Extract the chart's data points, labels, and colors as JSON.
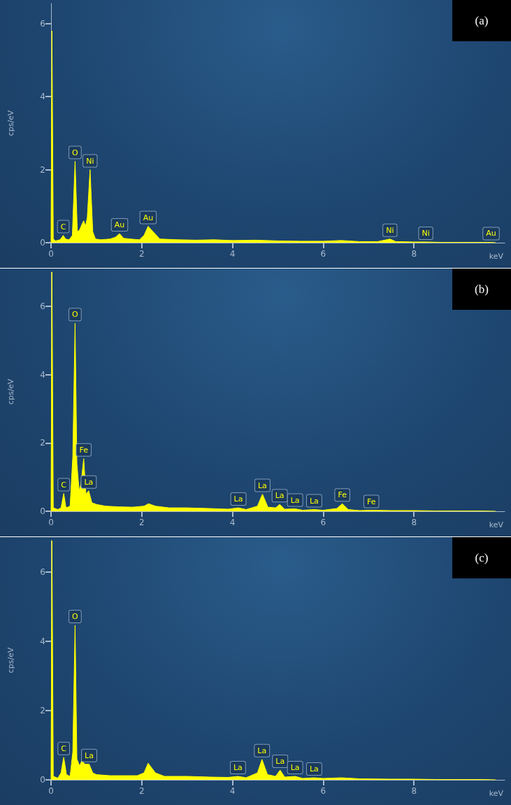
{
  "chart_data": [
    {
      "type": "area",
      "title": "(a)",
      "xlabel": "keV",
      "ylabel": "cps/eV",
      "color": "#ffff00",
      "xlim": [
        0,
        10
      ],
      "ylim": [
        0,
        6.55
      ],
      "xticks": [
        0,
        2,
        4,
        6,
        8
      ],
      "yticks": [
        0,
        2,
        4,
        6
      ],
      "x": [
        0,
        0.02,
        0.05,
        0.1,
        0.2,
        0.27,
        0.32,
        0.4,
        0.47,
        0.53,
        0.58,
        0.63,
        0.68,
        0.72,
        0.76,
        0.8,
        0.86,
        0.92,
        0.98,
        1.1,
        1.3,
        1.42,
        1.51,
        1.6,
        1.75,
        1.95,
        2.05,
        2.14,
        2.25,
        2.4,
        2.8,
        3.2,
        3.6,
        4.0,
        4.5,
        5.0,
        5.5,
        6.0,
        6.4,
        6.8,
        7.2,
        7.47,
        7.6,
        8.0,
        8.26,
        8.6,
        9.0,
        9.4,
        9.7,
        9.8
      ],
      "values": [
        0,
        5.8,
        0.1,
        0.05,
        0.08,
        0.2,
        0.1,
        0.08,
        0.2,
        2.23,
        0.3,
        0.35,
        0.5,
        0.6,
        0.45,
        0.7,
        2.0,
        0.3,
        0.1,
        0.08,
        0.1,
        0.15,
        0.25,
        0.12,
        0.1,
        0.08,
        0.2,
        0.45,
        0.3,
        0.1,
        0.08,
        0.07,
        0.08,
        0.06,
        0.07,
        0.05,
        0.04,
        0.04,
        0.06,
        0.03,
        0.03,
        0.1,
        0.03,
        0.02,
        0.02,
        0.01,
        0.01,
        0.01,
        0.01,
        0
      ],
      "annotations": [
        {
          "text": "C",
          "x": 0.27,
          "y": 0.2
        },
        {
          "text": "O",
          "x": 0.53,
          "y": 2.23
        },
        {
          "text": "Ni",
          "x": 0.86,
          "y": 2.0
        },
        {
          "text": "Au",
          "x": 1.51,
          "y": 0.25
        },
        {
          "text": "Au",
          "x": 2.14,
          "y": 0.45
        },
        {
          "text": "Ni",
          "x": 7.47,
          "y": 0.1
        },
        {
          "text": "Ni",
          "x": 8.26,
          "y": 0.02
        },
        {
          "text": "Au",
          "x": 9.7,
          "y": 0.01
        }
      ]
    },
    {
      "type": "area",
      "title": "(b)",
      "xlabel": "keV",
      "ylabel": "cps/eV",
      "color": "#ffff00",
      "xlim": [
        0,
        10
      ],
      "ylim": [
        0,
        7.0
      ],
      "xticks": [
        0,
        2,
        4,
        6,
        8
      ],
      "yticks": [
        0,
        2,
        4,
        6
      ],
      "x": [
        0,
        0.02,
        0.05,
        0.15,
        0.22,
        0.28,
        0.33,
        0.42,
        0.48,
        0.53,
        0.57,
        0.62,
        0.66,
        0.72,
        0.77,
        0.83,
        0.9,
        1.0,
        1.2,
        1.5,
        1.8,
        2.05,
        2.15,
        2.3,
        2.6,
        3.0,
        3.5,
        3.9,
        4.13,
        4.3,
        4.55,
        4.66,
        4.78,
        4.95,
        5.04,
        5.15,
        5.38,
        5.55,
        5.8,
        6.0,
        6.3,
        6.42,
        6.55,
        6.8,
        7.06,
        7.5,
        8.0,
        8.5,
        9.0,
        9.5,
        9.8
      ],
      "values": [
        0,
        7.0,
        0.1,
        0.05,
        0.1,
        0.52,
        0.1,
        0.15,
        1.6,
        5.5,
        1.4,
        0.6,
        0.8,
        1.54,
        0.5,
        0.6,
        0.25,
        0.2,
        0.15,
        0.13,
        0.12,
        0.15,
        0.22,
        0.15,
        0.1,
        0.1,
        0.08,
        0.06,
        0.1,
        0.05,
        0.15,
        0.5,
        0.12,
        0.1,
        0.2,
        0.06,
        0.07,
        0.03,
        0.05,
        0.03,
        0.08,
        0.22,
        0.05,
        0.02,
        0.03,
        0.02,
        0.02,
        0.01,
        0.01,
        0.01,
        0
      ],
      "annotations": [
        {
          "text": "C",
          "x": 0.28,
          "y": 0.52
        },
        {
          "text": "O",
          "x": 0.53,
          "y": 5.5
        },
        {
          "text": "Fe",
          "x": 0.72,
          "y": 1.54
        },
        {
          "text": "La",
          "x": 0.83,
          "y": 0.6
        },
        {
          "text": "La",
          "x": 4.13,
          "y": 0.1
        },
        {
          "text": "La",
          "x": 4.66,
          "y": 0.5
        },
        {
          "text": "La",
          "x": 5.04,
          "y": 0.2
        },
        {
          "text": "La",
          "x": 5.38,
          "y": 0.07
        },
        {
          "text": "La",
          "x": 5.8,
          "y": 0.05
        },
        {
          "text": "Fe",
          "x": 6.42,
          "y": 0.22
        },
        {
          "text": "Fe",
          "x": 7.06,
          "y": 0.03
        }
      ]
    },
    {
      "type": "area",
      "title": "(c)",
      "xlabel": "keV",
      "ylabel": "cps/eV",
      "color": "#ffff00",
      "xlim": [
        0,
        10
      ],
      "ylim": [
        0,
        6.9
      ],
      "xticks": [
        0,
        2,
        4,
        6,
        8
      ],
      "yticks": [
        0,
        2,
        4,
        6
      ],
      "x": [
        0,
        0.02,
        0.05,
        0.15,
        0.22,
        0.28,
        0.34,
        0.42,
        0.48,
        0.53,
        0.57,
        0.63,
        0.68,
        0.75,
        0.84,
        0.92,
        1.0,
        1.3,
        1.6,
        1.9,
        2.05,
        2.14,
        2.3,
        2.5,
        3.0,
        3.5,
        3.9,
        4.12,
        4.3,
        4.55,
        4.65,
        4.77,
        4.95,
        5.05,
        5.15,
        5.38,
        5.55,
        5.8,
        6.0,
        6.4,
        6.8,
        7.5,
        8.0,
        8.5,
        9.0,
        9.5,
        9.8
      ],
      "values": [
        0,
        6.9,
        0.1,
        0.05,
        0.2,
        0.65,
        0.15,
        0.1,
        0.8,
        4.46,
        0.6,
        0.4,
        0.55,
        0.45,
        0.45,
        0.2,
        0.15,
        0.12,
        0.12,
        0.12,
        0.2,
        0.48,
        0.2,
        0.1,
        0.1,
        0.08,
        0.07,
        0.1,
        0.06,
        0.2,
        0.59,
        0.15,
        0.1,
        0.28,
        0.08,
        0.1,
        0.04,
        0.06,
        0.04,
        0.06,
        0.03,
        0.02,
        0.02,
        0.01,
        0.01,
        0.01,
        0
      ],
      "annotations": [
        {
          "text": "C",
          "x": 0.28,
          "y": 0.65
        },
        {
          "text": "O",
          "x": 0.53,
          "y": 4.46
        },
        {
          "text": "La",
          "x": 0.84,
          "y": 0.45
        },
        {
          "text": "La",
          "x": 4.12,
          "y": 0.1
        },
        {
          "text": "La",
          "x": 4.65,
          "y": 0.59
        },
        {
          "text": "La",
          "x": 5.05,
          "y": 0.28
        },
        {
          "text": "La",
          "x": 5.38,
          "y": 0.1
        },
        {
          "text": "La",
          "x": 5.8,
          "y": 0.06
        }
      ]
    }
  ]
}
